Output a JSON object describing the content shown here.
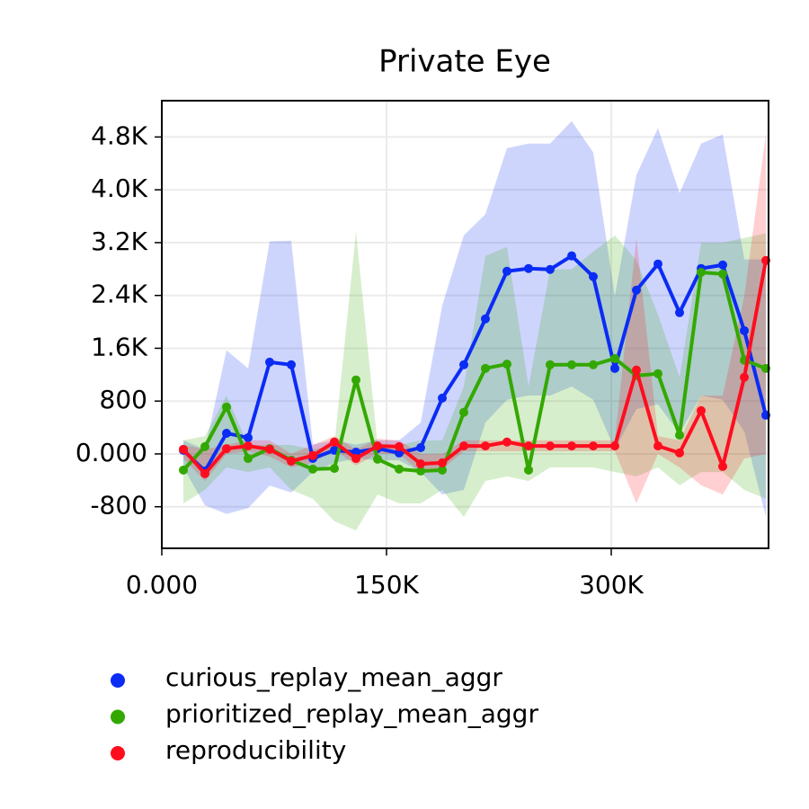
{
  "chart_data": {
    "type": "line",
    "title": "Private Eye",
    "x": [
      14400,
      28800,
      43200,
      57600,
      72000,
      86400,
      100800,
      115200,
      129600,
      144000,
      158400,
      172800,
      187200,
      201600,
      216000,
      230400,
      244800,
      259200,
      273600,
      288000,
      302400,
      316800,
      331200,
      345600,
      360000,
      374400,
      388800,
      403200
    ],
    "xlim": [
      0,
      405000
    ],
    "xticks": [
      {
        "value": 0,
        "label": "0.000"
      },
      {
        "value": 150000,
        "label": "150K"
      },
      {
        "value": 300000,
        "label": "300K"
      }
    ],
    "ylim": [
      -1430,
      5350
    ],
    "yticks": [
      -800,
      {
        "value": 0,
        "label": "0.000"
      },
      800,
      {
        "value": 1600,
        "label": "1.6K"
      },
      {
        "value": 2400,
        "label": "2.4K"
      },
      {
        "value": 3200,
        "label": "3.2K"
      },
      {
        "value": 4000,
        "label": "4.0K"
      },
      {
        "value": 4800,
        "label": "4.8K"
      }
    ],
    "grid": true,
    "legend": "bottom",
    "series": [
      {
        "name": "curious_replay_mean_aggr",
        "color": "#0a2cf5",
        "values": [
          55,
          -260,
          313,
          245,
          1390,
          1350,
          -68,
          55,
          27,
          82,
          14,
          95,
          845,
          1350,
          2045,
          2767,
          2808,
          2794,
          2999,
          2685,
          1295,
          2481,
          2876,
          2140,
          2808,
          2862,
          1867,
          586
        ],
        "upper": [
          205,
          70,
          1570,
          1295,
          3220,
          3230,
          140,
          205,
          140,
          205,
          205,
          475,
          2250,
          3310,
          3630,
          4630,
          4700,
          4700,
          5040,
          4565,
          2385,
          4225,
          4935,
          3950,
          4700,
          4840,
          2945,
          2945
        ],
        "lower": [
          -205,
          -780,
          -910,
          -820,
          -480,
          -585,
          -275,
          -135,
          -70,
          -95,
          -95,
          -275,
          -615,
          -545,
          475,
          820,
          885,
          885,
          1020,
          820,
          70,
          680,
          750,
          310,
          885,
          820,
          340,
          -950
        ]
      },
      {
        "name": "prioritized_replay_mean_aggr",
        "color": "#33a800",
        "values": [
          -245,
          110,
          710,
          -70,
          80,
          -95,
          -230,
          -220,
          1120,
          -80,
          -230,
          -260,
          -245,
          630,
          1295,
          1360,
          -245,
          1350,
          1350,
          1350,
          1445,
          1185,
          1215,
          285,
          2750,
          2725,
          1420,
          1295
        ],
        "upper": [
          205,
          270,
          885,
          135,
          135,
          135,
          70,
          135,
          3365,
          135,
          135,
          205,
          205,
          1020,
          3000,
          3135,
          1020,
          2795,
          2795,
          3065,
          3310,
          2930,
          2110,
          1160,
          3200,
          3200,
          3270,
          3340
        ],
        "lower": [
          -750,
          -545,
          -205,
          -275,
          -205,
          -545,
          -680,
          -1020,
          -1160,
          -615,
          -750,
          -750,
          -545,
          -955,
          -410,
          -340,
          -410,
          -205,
          -205,
          -205,
          -275,
          -340,
          -205,
          -475,
          -275,
          -275,
          -545,
          -680
        ]
      },
      {
        "name": "reproducibility",
        "color": "#ff0d1f",
        "values": [
          70,
          -300,
          80,
          120,
          70,
          -110,
          -25,
          180,
          -70,
          120,
          110,
          -150,
          -135,
          120,
          120,
          180,
          120,
          120,
          120,
          120,
          120,
          1270,
          120,
          15,
          655,
          -190,
          1160,
          2930
        ],
        "upper": [
          135,
          70,
          135,
          205,
          205,
          0,
          135,
          270,
          70,
          230,
          205,
          0,
          0,
          205,
          205,
          205,
          205,
          205,
          205,
          205,
          205,
          3270,
          270,
          205,
          885,
          885,
          2385,
          4840
        ],
        "lower": [
          -70,
          -410,
          0,
          40,
          -40,
          -205,
          -135,
          70,
          -175,
          0,
          0,
          -275,
          -230,
          40,
          40,
          40,
          40,
          40,
          40,
          40,
          40,
          -750,
          0,
          -205,
          -475,
          -615,
          -70,
          0
        ]
      }
    ]
  }
}
